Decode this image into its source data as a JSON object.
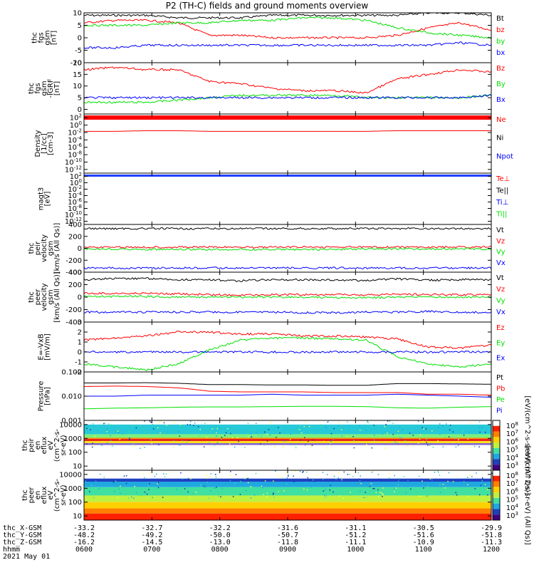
{
  "title": "P2 (TH-C) fields and ground moments overview",
  "colors": {
    "black": "#000000",
    "red": "#ff0000",
    "green": "#00e000",
    "blue": "#0000ff"
  },
  "footer": {
    "row_labels": [
      "thc_X-GSM",
      "thc_Y-GSM",
      "thc_Z-GSM",
      "hhmm",
      "2021 May 01"
    ],
    "columns": [
      {
        "x": "-33.2",
        "y": "-48.2",
        "z": "-16.2",
        "t": "0600"
      },
      {
        "x": "-32.7",
        "y": "-49.2",
        "z": "-14.5",
        "t": "0700"
      },
      {
        "x": "-32.2",
        "y": "-50.0",
        "z": "-13.0",
        "t": "0800"
      },
      {
        "x": "-31.6",
        "y": "-50.7",
        "z": "-11.8",
        "t": "0900"
      },
      {
        "x": "-31.1",
        "y": "-51.2",
        "z": "-11.1",
        "t": "1000"
      },
      {
        "x": "-30.5",
        "y": "-51.6",
        "z": "-10.9",
        "t": "1100"
      },
      {
        "x": "-29.9",
        "y": "-51.8",
        "z": "-11.3",
        "t": "1200"
      }
    ]
  },
  "chart_data": [
    {
      "type": "line",
      "ylabel": "thc\nfgs\ngsm\n[nT]",
      "ylim": [
        -10,
        10
      ],
      "yticks": [
        "10",
        "5",
        "0",
        "-5",
        "-10"
      ],
      "series": [
        {
          "name": "Bt",
          "color": "black",
          "values": [
            9,
            9,
            9,
            8,
            8,
            8,
            9,
            9,
            9,
            9,
            9,
            10,
            10,
            9
          ]
        },
        {
          "name": "bz",
          "color": "red",
          "values": [
            6,
            7,
            7,
            6,
            1,
            1,
            0,
            0,
            0,
            0,
            1,
            4,
            6,
            3
          ]
        },
        {
          "name": "by",
          "color": "green",
          "values": [
            5,
            5,
            5,
            6,
            6,
            7,
            7,
            8,
            8,
            7,
            4,
            2,
            1,
            0
          ]
        },
        {
          "name": "bx",
          "color": "blue",
          "values": [
            -4,
            -4,
            -3,
            -3,
            -3,
            -3,
            -3,
            -3,
            -3,
            -3,
            -3,
            -3,
            -2,
            -3
          ]
        }
      ]
    },
    {
      "type": "line",
      "ylabel": "thc\nfgs\ngsm\n-IGRF\n[nT]",
      "ylim": [
        -2,
        20
      ],
      "yticks": [
        "20",
        "15",
        "10",
        "5",
        "0"
      ],
      "series": [
        {
          "name": "Bz",
          "color": "red",
          "values": [
            17,
            18,
            17,
            17,
            12,
            11,
            9,
            8,
            8,
            7,
            13,
            15,
            17,
            16
          ]
        },
        {
          "name": "By",
          "color": "green",
          "values": [
            3,
            3,
            3,
            4,
            5,
            6,
            6,
            6,
            6,
            5,
            5,
            5,
            5,
            6
          ]
        },
        {
          "name": "Bx",
          "color": "blue",
          "values": [
            5,
            5,
            5,
            5,
            5,
            5,
            5,
            5,
            5,
            5,
            5,
            5,
            5,
            6
          ]
        }
      ]
    },
    {
      "type": "line",
      "ylabel": "Density\n[1/cc]\n[cm-3]",
      "ylim": [
        1e-13,
        1000
      ],
      "log": true,
      "yticks": [
        "10^2",
        "10^0",
        "10^-2",
        "10^-4",
        "10^-6",
        "10^-8",
        "10^-10",
        "10^-12"
      ],
      "series": [
        {
          "name": "Ne",
          "color": "red",
          "values": [
            0.02,
            0.02,
            0.03,
            0.03,
            0.02,
            0.02,
            0.02,
            0.02,
            0.02,
            0.02,
            0.03,
            0.03,
            0.03,
            0.03
          ]
        },
        {
          "name": "Ni",
          "color": "black",
          "values": []
        },
        {
          "name": "Npot",
          "color": "blue",
          "values": []
        }
      ]
    },
    {
      "type": "line",
      "ylabel": "magt3\n[eV]",
      "ylim": [
        1e-13,
        1000
      ],
      "log": true,
      "yticks": [
        "10^2",
        "10^0",
        "10^-2",
        "10^-4",
        "10^-6",
        "10^-8",
        "10^-10",
        "10^-12"
      ],
      "series": [
        {
          "name": "Te⊥",
          "color": "red",
          "values": []
        },
        {
          "name": "Te||",
          "color": "black",
          "values": []
        },
        {
          "name": "Ti⊥",
          "color": "blue",
          "values": []
        },
        {
          "name": "Ti||",
          "color": "green",
          "values": []
        }
      ]
    },
    {
      "type": "line",
      "ylabel": "thc\npeir\nvelocity\ngsm\n[km/s (All Qs)]",
      "ylim": [
        -400,
        400
      ],
      "yticks": [
        "400",
        "200",
        "0",
        "-200",
        "-400"
      ],
      "series": [
        {
          "name": "Vt",
          "color": "black",
          "values": [
            330,
            330,
            330,
            330,
            330,
            330,
            330,
            330,
            330,
            330,
            330,
            330,
            330,
            330
          ]
        },
        {
          "name": "Vz",
          "color": "red",
          "values": [
            20,
            20,
            20,
            20,
            20,
            20,
            20,
            20,
            20,
            20,
            20,
            20,
            20,
            20
          ]
        },
        {
          "name": "Vy",
          "color": "green",
          "values": [
            -10,
            -10,
            -20,
            -20,
            -20,
            -20,
            -20,
            -20,
            -20,
            -10,
            -10,
            -10,
            -10,
            -10
          ]
        },
        {
          "name": "Vx",
          "color": "blue",
          "values": [
            -330,
            -330,
            -330,
            -330,
            -330,
            -330,
            -330,
            -330,
            -330,
            -330,
            -330,
            -330,
            -330,
            -330
          ]
        }
      ]
    },
    {
      "type": "line",
      "ylabel": "thc\npeer\nvelocity\ngsm\n[km/s (All Qs)]",
      "ylim": [
        -400,
        400
      ],
      "yticks": [
        "400",
        "200",
        "0",
        "-200",
        "-400"
      ],
      "series": [
        {
          "name": "Vt",
          "color": "black",
          "values": [
            280,
            300,
            300,
            280,
            280,
            260,
            280,
            280,
            270,
            270,
            290,
            270,
            280,
            280
          ]
        },
        {
          "name": "Vz",
          "color": "red",
          "values": [
            60,
            60,
            60,
            50,
            40,
            30,
            40,
            40,
            40,
            30,
            50,
            40,
            40,
            40
          ]
        },
        {
          "name": "Vy",
          "color": "green",
          "values": [
            10,
            10,
            10,
            0,
            0,
            0,
            0,
            0,
            -10,
            -10,
            0,
            0,
            0,
            0
          ]
        },
        {
          "name": "Vx",
          "color": "blue",
          "values": [
            -240,
            -240,
            -240,
            -240,
            -240,
            -240,
            -240,
            -250,
            -250,
            -240,
            -240,
            -230,
            -240,
            -250
          ]
        }
      ]
    },
    {
      "type": "line",
      "ylabel": "E=-VxB\n[mV/m]",
      "ylim": [
        -2,
        3
      ],
      "yticks": [
        "3",
        "2",
        "1",
        "0",
        "-1",
        "-2"
      ],
      "series": [
        {
          "name": "Ez",
          "color": "red",
          "values": [
            1.2,
            1.4,
            1.6,
            2.0,
            2.0,
            1.8,
            1.8,
            1.6,
            1.6,
            1.5,
            1.3,
            0.5,
            0.4,
            0.7
          ]
        },
        {
          "name": "Ey",
          "color": "green",
          "values": [
            -1.2,
            -1.5,
            -1.8,
            -1.2,
            0.2,
            1.2,
            1.4,
            1.4,
            1.3,
            1.2,
            -0.5,
            -1.2,
            -1.5,
            -1.2
          ]
        },
        {
          "name": "Ex",
          "color": "blue",
          "values": [
            0,
            0,
            0,
            0,
            0,
            0,
            0,
            0,
            0,
            0,
            0,
            0,
            0,
            0
          ]
        }
      ]
    },
    {
      "type": "line",
      "ylabel": "Pressure\n[nPa]",
      "ylim": [
        0.001,
        0.1
      ],
      "log": true,
      "yticks": [
        "0.100",
        "0.010",
        "0.001"
      ],
      "series": [
        {
          "name": "Pt",
          "color": "black",
          "values": [
            0.035,
            0.035,
            0.036,
            0.034,
            0.03,
            0.03,
            0.029,
            0.029,
            0.028,
            0.028,
            0.033,
            0.033,
            0.032,
            0.031
          ]
        },
        {
          "name": "Pb",
          "color": "red",
          "values": [
            0.025,
            0.026,
            0.025,
            0.022,
            0.016,
            0.015,
            0.015,
            0.015,
            0.014,
            0.014,
            0.014,
            0.012,
            0.012,
            0.011
          ]
        },
        {
          "name": "Pe",
          "color": "green",
          "values": [
            0.003,
            0.0032,
            0.0033,
            0.0035,
            0.0036,
            0.0036,
            0.0037,
            0.0038,
            0.0038,
            0.0037,
            0.0033,
            0.0032,
            0.0035,
            0.0037
          ]
        },
        {
          "name": "Pi",
          "color": "blue",
          "values": [
            0.01,
            0.01,
            0.011,
            0.011,
            0.011,
            0.011,
            0.012,
            0.011,
            0.011,
            0.011,
            0.012,
            0.011,
            0.01,
            0.009
          ]
        }
      ]
    },
    {
      "type": "heatmap",
      "ylabel": "thc\npeir\nen\neflux\neV\n(cm^2-s-\nsr-eV)",
      "ylim": [
        5,
        20000
      ],
      "log": true,
      "yticks": [
        "10000",
        "1000",
        "100",
        "10"
      ],
      "colorbar_label": "[eV/(cm^2-s-sr-eV) (All Qs)]",
      "colorbar_ticks": [
        "10^8",
        "10^7",
        "10^6",
        "10^5",
        "10^4",
        "10^3"
      ],
      "bands": [
        {
          "from": 2000,
          "to": 10000,
          "color": "#26c9d8"
        },
        {
          "from": 1100,
          "to": 2000,
          "color": "#7cf07c"
        },
        {
          "from": 900,
          "to": 1100,
          "color": "#ff8800"
        },
        {
          "from": 650,
          "to": 900,
          "color": "#e81010"
        },
        {
          "from": 450,
          "to": 650,
          "color": "#ffe020"
        },
        {
          "from": 330,
          "to": 450,
          "color": "#8060d0"
        },
        {
          "from": 5,
          "to": 330,
          "color": "#ffffff"
        }
      ]
    },
    {
      "type": "heatmap",
      "ylabel": "thc\npeer\nen\neflux\neV\n(cm^2-s-\nsr-eV)",
      "ylim": [
        5,
        20000
      ],
      "log": true,
      "yticks": [
        "10000",
        "1000",
        "100",
        "10"
      ],
      "colorbar_label": "[eV/(cm^2-s-sr-eV) (All Qs)]",
      "colorbar_ticks": [
        "10^8",
        "10^7",
        "10^6",
        "10^5",
        "10^4",
        "10^3"
      ],
      "bands": [
        {
          "from": 3000,
          "to": 5000,
          "color": "#2040c0"
        },
        {
          "from": 1200,
          "to": 3000,
          "color": "#20a8e0"
        },
        {
          "from": 300,
          "to": 1200,
          "color": "#40e0a0"
        },
        {
          "from": 100,
          "to": 300,
          "color": "#c0f040"
        },
        {
          "from": 35,
          "to": 100,
          "color": "#ffd000"
        },
        {
          "from": 15,
          "to": 35,
          "color": "#ff8000"
        },
        {
          "from": 5,
          "to": 15,
          "color": "#ff2000"
        }
      ]
    }
  ]
}
